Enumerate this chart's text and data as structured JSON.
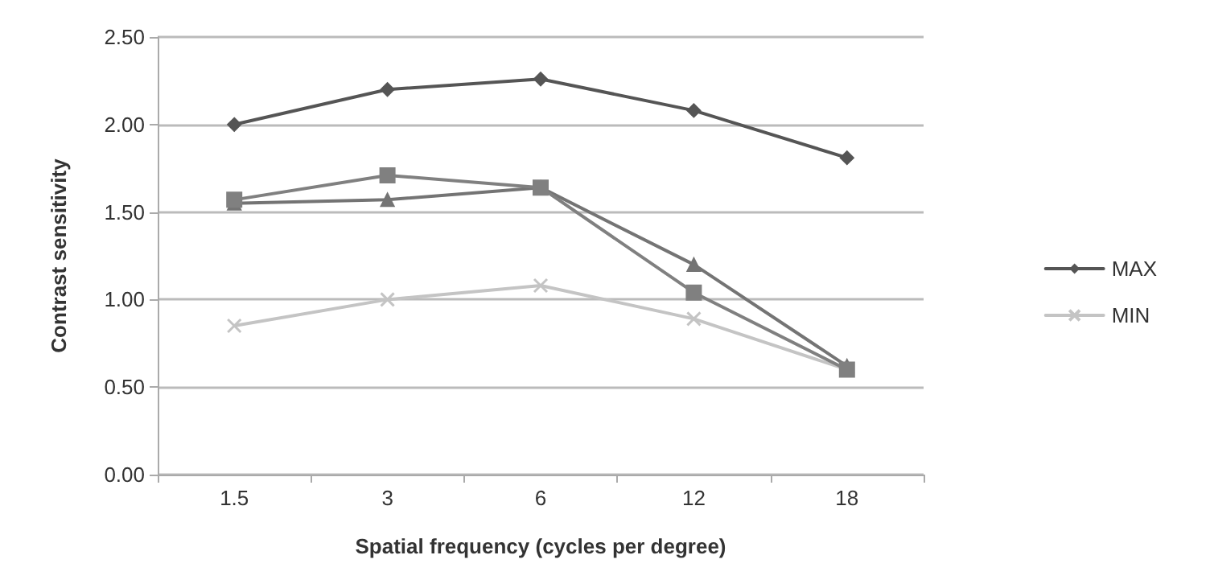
{
  "chart_data": {
    "type": "line",
    "xlabel": "Spatial frequency (cycles per degree)",
    "ylabel": "Contrast sensitivity",
    "categories": [
      "1.5",
      "3",
      "6",
      "12",
      "18"
    ],
    "series": [
      {
        "name": "MAX",
        "color": "#555555",
        "marker": "diamond",
        "values": [
          2.0,
          2.2,
          2.26,
          2.08,
          1.81
        ]
      },
      {
        "color": "#808080",
        "marker": "square",
        "values": [
          1.57,
          1.71,
          1.64,
          1.04,
          0.6
        ]
      },
      {
        "color": "#747474",
        "marker": "triangle",
        "values": [
          1.55,
          1.57,
          1.64,
          1.2,
          0.62
        ]
      },
      {
        "name": "MIN",
        "color": "#c4c4c4",
        "marker": "cross",
        "values": [
          0.85,
          1.0,
          1.08,
          0.89,
          0.6
        ]
      }
    ],
    "ylim": [
      0,
      2.5
    ],
    "yticks": [
      {
        "value": 0,
        "label": "0.00"
      },
      {
        "value": 0.5,
        "label": "0.50"
      },
      {
        "value": 1,
        "label": "1.00"
      },
      {
        "value": 1.5,
        "label": "1.50"
      },
      {
        "value": 2,
        "label": "2.00"
      },
      {
        "value": 2.5,
        "label": "2.50"
      }
    ],
    "grid": "y",
    "legend": "right",
    "line_style": "solid"
  }
}
